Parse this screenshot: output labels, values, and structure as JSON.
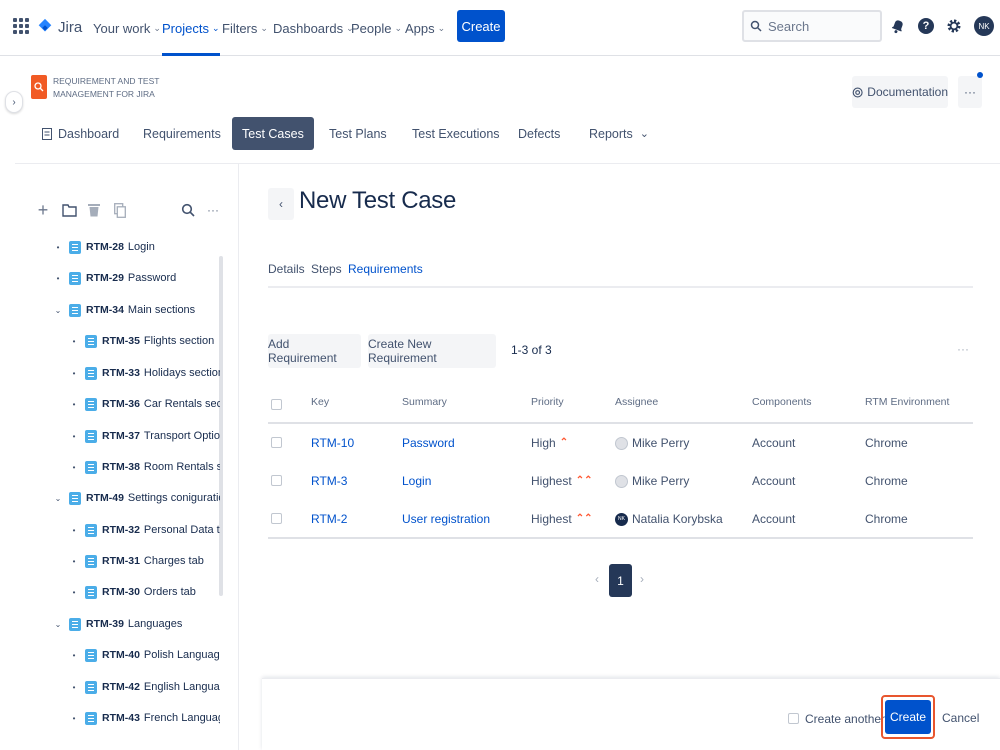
{
  "topnav": {
    "logo_text": "Jira",
    "items": [
      {
        "label": "Your work",
        "chevron": "⌄"
      },
      {
        "label": "Projects",
        "chevron": "⌄"
      },
      {
        "label": "Filters",
        "chevron": "⌄"
      },
      {
        "label": "Dashboards",
        "chevron": "⌄"
      },
      {
        "label": "People",
        "chevron": "⌄"
      },
      {
        "label": "Apps",
        "chevron": "⌄"
      }
    ],
    "create_label": "Create",
    "search_placeholder": "Search",
    "help_label": "?",
    "avatar_initials": "NK",
    "accent_color": "#0052cc"
  },
  "project": {
    "name": "REQUIREMENT AND TEST MANAGEMENT FOR JIRA",
    "documentation_label": "Documentation",
    "more_label": "···",
    "tabs": [
      {
        "label": "Dashboard"
      },
      {
        "label": "Requirements"
      },
      {
        "label": "Test Cases"
      },
      {
        "label": "Test Plans"
      },
      {
        "label": "Test Executions"
      },
      {
        "label": "Defects"
      },
      {
        "label": "Reports"
      }
    ],
    "active_tab": "Test Cases"
  },
  "sidebar": {
    "tools": [
      "plus-icon",
      "folder-icon",
      "trash-icon",
      "copy-icon",
      "search-icon",
      "more-icon"
    ],
    "tree": [
      {
        "key": "RTM-28",
        "title": "Login",
        "toggle": "•"
      },
      {
        "key": "RTM-29",
        "title": "Password",
        "toggle": "•"
      },
      {
        "key": "RTM-34",
        "title": "Main sections",
        "toggle": "⌄"
      },
      {
        "key": "RTM-35",
        "title": "Flights section",
        "toggle": "•"
      },
      {
        "key": "RTM-33",
        "title": "Holidays section",
        "toggle": "•"
      },
      {
        "key": "RTM-36",
        "title": "Car Rentals section",
        "toggle": "•"
      },
      {
        "key": "RTM-37",
        "title": "Transport Options s",
        "toggle": "•"
      },
      {
        "key": "RTM-38",
        "title": "Room Rentals secti",
        "toggle": "•"
      },
      {
        "key": "RTM-49",
        "title": "Settings coniguration",
        "toggle": "⌄"
      },
      {
        "key": "RTM-32",
        "title": "Personal Data tab",
        "toggle": "•"
      },
      {
        "key": "RTM-31",
        "title": "Charges tab",
        "toggle": "•"
      },
      {
        "key": "RTM-30",
        "title": "Orders tab",
        "toggle": "•"
      },
      {
        "key": "RTM-39",
        "title": "Languages",
        "toggle": "⌄"
      },
      {
        "key": "RTM-40",
        "title": "Polish Language",
        "toggle": "•"
      },
      {
        "key": "RTM-42",
        "title": "English Language",
        "toggle": "•"
      },
      {
        "key": "RTM-43",
        "title": "French Language",
        "toggle": "•"
      }
    ]
  },
  "main": {
    "back_label": "‹",
    "title": "New Test Case",
    "tabs": [
      {
        "label": "Details"
      },
      {
        "label": "Steps"
      },
      {
        "label": "Requirements"
      }
    ],
    "active_tab": "Requirements",
    "add_requirement_label": "Add Requirement",
    "create_new_requirement_label": "Create New Requirement",
    "count_text": "1-3 of 3",
    "table_more_label": "···",
    "columns": [
      "Key",
      "Summary",
      "Priority",
      "Assignee",
      "Components",
      "RTM Environment"
    ],
    "rows": [
      {
        "key": "RTM-10",
        "summary": "Password",
        "priority": "High",
        "priority_icon": "⌃",
        "assignee": "Mike Perry",
        "assignee_initials": "",
        "components": "Account",
        "environment": "Chrome"
      },
      {
        "key": "RTM-3",
        "summary": "Login",
        "priority": "Highest",
        "priority_icon": "⌃⌃",
        "assignee": "Mike Perry",
        "assignee_initials": "",
        "components": "Account",
        "environment": "Chrome"
      },
      {
        "key": "RTM-2",
        "summary": "User registration",
        "priority": "Highest",
        "priority_icon": "⌃⌃",
        "assignee": "Natalia Korybska",
        "assignee_initials": "NK",
        "components": "Account",
        "environment": "Chrome"
      }
    ],
    "pagination": {
      "prev": "‹",
      "current": "1",
      "next": "›"
    }
  },
  "footer": {
    "create_another_label": "Create another",
    "create_label": "Create",
    "cancel_label": "Cancel"
  }
}
